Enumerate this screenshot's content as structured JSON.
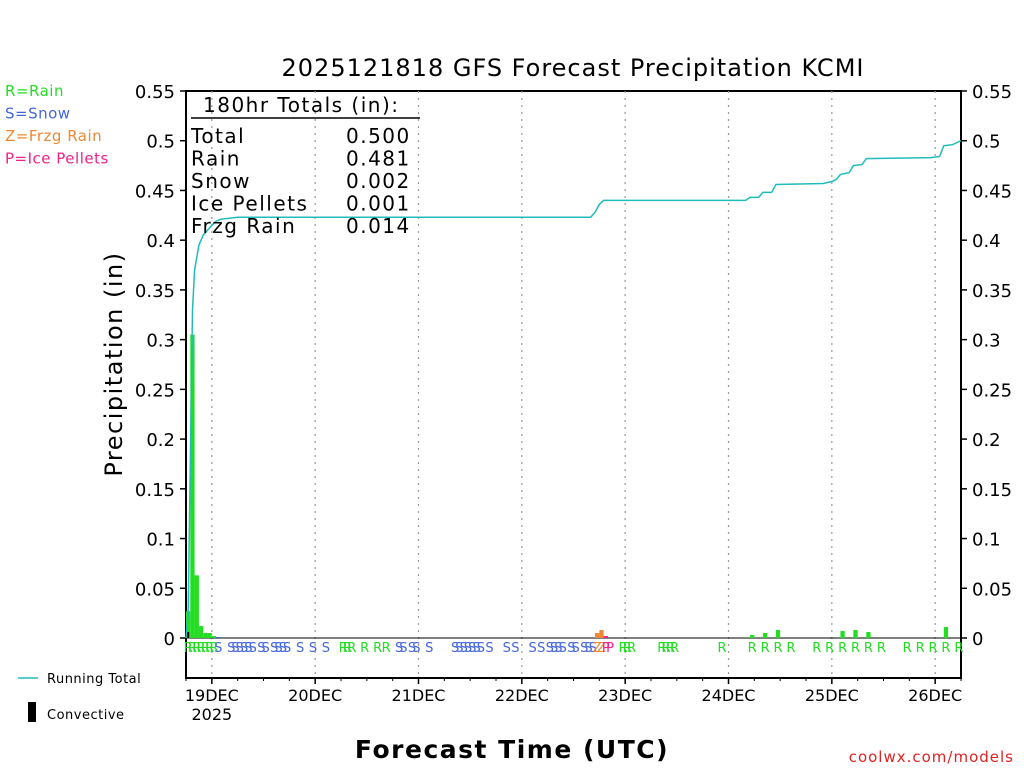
{
  "chart_data": {
    "type": "bar",
    "title": "2025121818 GFS Forecast Precipitation KCMI",
    "xlabel": "Forecast Time (UTC)",
    "ylabel": "Precipitation (in)",
    "ylim": [
      0,
      0.55
    ],
    "y_ticks": [
      "0",
      "0.05",
      "0.1",
      "0.15",
      "0.2",
      "0.25",
      "0.3",
      "0.35",
      "0.4",
      "0.45",
      "0.5",
      "0.55"
    ],
    "y_tick_values": [
      0,
      0.05,
      0.1,
      0.15,
      0.2,
      0.25,
      0.3,
      0.35,
      0.4,
      0.45,
      0.5,
      0.55
    ],
    "x_range_hours": [
      0,
      180
    ],
    "x_ticks": [
      {
        "label": "19DEC",
        "sub": "2025",
        "hour": 6
      },
      {
        "label": "20DEC",
        "sub": "",
        "hour": 30
      },
      {
        "label": "21DEC",
        "sub": "",
        "hour": 54
      },
      {
        "label": "22DEC",
        "sub": "",
        "hour": 78
      },
      {
        "label": "23DEC",
        "sub": "",
        "hour": 102
      },
      {
        "label": "24DEC",
        "sub": "",
        "hour": 126
      },
      {
        "label": "25DEC",
        "sub": "",
        "hour": 150
      },
      {
        "label": "26DEC",
        "sub": "",
        "hour": 174
      }
    ],
    "grid": "vertical dotted at each day",
    "legend_precip_types": [
      {
        "label": "R=Rain",
        "color": "#22dd22"
      },
      {
        "label": "S=Snow",
        "color": "#4466dd"
      },
      {
        "label": "Z=Frzg Rain",
        "color": "#ee8833"
      },
      {
        "label": "P=Ice Pellets",
        "color": "#ee2288"
      }
    ],
    "legend_lines": [
      {
        "label": "Running Total",
        "color": "#22bbbb"
      },
      {
        "label": "Convective",
        "color": "#000000"
      }
    ],
    "totals_box": {
      "heading": "180hr Totals (in):",
      "rows": [
        {
          "label": "Total",
          "value": "0.500"
        },
        {
          "label": "Rain",
          "value": "0.481"
        },
        {
          "label": "Snow",
          "value": "0.002"
        },
        {
          "label": "Ice Pellets",
          "value": "0.001"
        },
        {
          "label": "Frzg Rain",
          "value": "0.014"
        }
      ]
    },
    "bars": [
      {
        "hour": 0.5,
        "value": 0.027,
        "type": "rain"
      },
      {
        "hour": 1.5,
        "value": 0.305,
        "type": "rain"
      },
      {
        "hour": 2.5,
        "value": 0.063,
        "type": "rain"
      },
      {
        "hour": 3.5,
        "value": 0.012,
        "type": "rain"
      },
      {
        "hour": 4.5,
        "value": 0.005,
        "type": "rain"
      },
      {
        "hour": 5.5,
        "value": 0.005,
        "type": "rain"
      },
      {
        "hour": 6.5,
        "value": 0.002,
        "type": "rain"
      },
      {
        "hour": 7.5,
        "value": 0.001,
        "type": "snow"
      },
      {
        "hour": 95.5,
        "value": 0.005,
        "type": "frzg"
      },
      {
        "hour": 96.5,
        "value": 0.008,
        "type": "frzg"
      },
      {
        "hour": 97.5,
        "value": 0.002,
        "type": "ice"
      },
      {
        "hour": 131.5,
        "value": 0.003,
        "type": "rain"
      },
      {
        "hour": 134.5,
        "value": 0.005,
        "type": "rain"
      },
      {
        "hour": 137.5,
        "value": 0.008,
        "type": "rain"
      },
      {
        "hour": 152.5,
        "value": 0.007,
        "type": "rain"
      },
      {
        "hour": 155.5,
        "value": 0.008,
        "type": "rain"
      },
      {
        "hour": 158.5,
        "value": 0.006,
        "type": "rain"
      },
      {
        "hour": 176.5,
        "value": 0.011,
        "type": "rain"
      }
    ],
    "convective_bars": [
      {
        "hour": 0.5,
        "value": 0.006
      }
    ],
    "running_total": [
      [
        0,
        0
      ],
      [
        0.5,
        0.027
      ],
      [
        1.5,
        0.33
      ],
      [
        2,
        0.37
      ],
      [
        3,
        0.395
      ],
      [
        4,
        0.405
      ],
      [
        5,
        0.41
      ],
      [
        6,
        0.415
      ],
      [
        7,
        0.419
      ],
      [
        8,
        0.421
      ],
      [
        10,
        0.422
      ],
      [
        12,
        0.423
      ],
      [
        94,
        0.423
      ],
      [
        95,
        0.428
      ],
      [
        96,
        0.436
      ],
      [
        97,
        0.44
      ],
      [
        98,
        0.44
      ],
      [
        130,
        0.44
      ],
      [
        131,
        0.443
      ],
      [
        133,
        0.443
      ],
      [
        134,
        0.448
      ],
      [
        136,
        0.448
      ],
      [
        137,
        0.456
      ],
      [
        148,
        0.457
      ],
      [
        150,
        0.459
      ],
      [
        151,
        0.461
      ],
      [
        152,
        0.466
      ],
      [
        154,
        0.468
      ],
      [
        155,
        0.475
      ],
      [
        157,
        0.476
      ],
      [
        158,
        0.482
      ],
      [
        173,
        0.483
      ],
      [
        175,
        0.484
      ],
      [
        176,
        0.495
      ],
      [
        178,
        0.496
      ],
      [
        180,
        0.5
      ]
    ],
    "type_markers": [
      {
        "hour": 0.5,
        "letter": "R"
      },
      {
        "hour": 1.5,
        "letter": "R"
      },
      {
        "hour": 2.5,
        "letter": "R"
      },
      {
        "hour": 3.5,
        "letter": "R"
      },
      {
        "hour": 4.5,
        "letter": "R"
      },
      {
        "hour": 5.5,
        "letter": "R"
      },
      {
        "hour": 6.5,
        "letter": "R"
      },
      {
        "hour": 7.5,
        "letter": "S"
      },
      {
        "hour": 10.5,
        "letter": "S"
      },
      {
        "hour": 11.5,
        "letter": "S"
      },
      {
        "hour": 12.5,
        "letter": "S"
      },
      {
        "hour": 13.5,
        "letter": "S"
      },
      {
        "hour": 14.5,
        "letter": "S"
      },
      {
        "hour": 15.5,
        "letter": "S"
      },
      {
        "hour": 17.5,
        "letter": "S"
      },
      {
        "hour": 18.5,
        "letter": "S"
      },
      {
        "hour": 20.5,
        "letter": "S"
      },
      {
        "hour": 21.5,
        "letter": "S"
      },
      {
        "hour": 22.5,
        "letter": "S"
      },
      {
        "hour": 23.5,
        "letter": "S"
      },
      {
        "hour": 26.5,
        "letter": "S"
      },
      {
        "hour": 29.5,
        "letter": "S"
      },
      {
        "hour": 32.5,
        "letter": "S"
      },
      {
        "hour": 36.5,
        "letter": "R"
      },
      {
        "hour": 37.5,
        "letter": "R"
      },
      {
        "hour": 38.5,
        "letter": "R"
      },
      {
        "hour": 41.5,
        "letter": "R"
      },
      {
        "hour": 44.5,
        "letter": "R"
      },
      {
        "hour": 46.5,
        "letter": "R"
      },
      {
        "hour": 49.5,
        "letter": "S"
      },
      {
        "hour": 50.5,
        "letter": "S"
      },
      {
        "hour": 52.5,
        "letter": "S"
      },
      {
        "hour": 53.5,
        "letter": "S"
      },
      {
        "hour": 56.5,
        "letter": "S"
      },
      {
        "hour": 62.5,
        "letter": "S"
      },
      {
        "hour": 63.5,
        "letter": "S"
      },
      {
        "hour": 64.5,
        "letter": "S"
      },
      {
        "hour": 65.5,
        "letter": "S"
      },
      {
        "hour": 66.5,
        "letter": "S"
      },
      {
        "hour": 67.5,
        "letter": "S"
      },
      {
        "hour": 68.5,
        "letter": "S"
      },
      {
        "hour": 70.5,
        "letter": "S"
      },
      {
        "hour": 74.5,
        "letter": "S"
      },
      {
        "hour": 76.5,
        "letter": "S"
      },
      {
        "hour": 80.5,
        "letter": "S"
      },
      {
        "hour": 82.5,
        "letter": "S"
      },
      {
        "hour": 84.5,
        "letter": "S"
      },
      {
        "hour": 85.5,
        "letter": "S"
      },
      {
        "hour": 86.5,
        "letter": "S"
      },
      {
        "hour": 87.5,
        "letter": "S"
      },
      {
        "hour": 89.5,
        "letter": "S"
      },
      {
        "hour": 90.5,
        "letter": "S"
      },
      {
        "hour": 92.5,
        "letter": "S"
      },
      {
        "hour": 93.5,
        "letter": "S"
      },
      {
        "hour": 94.5,
        "letter": "S"
      },
      {
        "hour": 95.5,
        "letter": "Z"
      },
      {
        "hour": 96.5,
        "letter": "Z"
      },
      {
        "hour": 97.5,
        "letter": "P"
      },
      {
        "hour": 98.5,
        "letter": "P"
      },
      {
        "hour": 101.5,
        "letter": "R"
      },
      {
        "hour": 102.5,
        "letter": "R"
      },
      {
        "hour": 103.5,
        "letter": "R"
      },
      {
        "hour": 110.5,
        "letter": "R"
      },
      {
        "hour": 111.5,
        "letter": "R"
      },
      {
        "hour": 112.5,
        "letter": "R"
      },
      {
        "hour": 113.5,
        "letter": "R"
      },
      {
        "hour": 124.5,
        "letter": "R"
      },
      {
        "hour": 131.5,
        "letter": "R"
      },
      {
        "hour": 134.5,
        "letter": "R"
      },
      {
        "hour": 137.5,
        "letter": "R"
      },
      {
        "hour": 140.5,
        "letter": "R"
      },
      {
        "hour": 146.5,
        "letter": "R"
      },
      {
        "hour": 149.5,
        "letter": "R"
      },
      {
        "hour": 152.5,
        "letter": "R"
      },
      {
        "hour": 155.5,
        "letter": "R"
      },
      {
        "hour": 158.5,
        "letter": "R"
      },
      {
        "hour": 161.5,
        "letter": "R"
      },
      {
        "hour": 167.5,
        "letter": "R"
      },
      {
        "hour": 170.5,
        "letter": "R"
      },
      {
        "hour": 173.5,
        "letter": "R"
      },
      {
        "hour": 176.5,
        "letter": "R"
      },
      {
        "hour": 179.5,
        "letter": "R"
      }
    ],
    "type_colors": {
      "R": "#22dd22",
      "S": "#4466dd",
      "Z": "#ee8833",
      "P": "#ee2288"
    },
    "bar_colors": {
      "rain": "#22dd22",
      "snow": "#4466dd",
      "frzg": "#ee8833",
      "ice": "#ee2288",
      "convective": "#000000"
    }
  },
  "footer": {
    "credit": "coolwx.com/models"
  }
}
